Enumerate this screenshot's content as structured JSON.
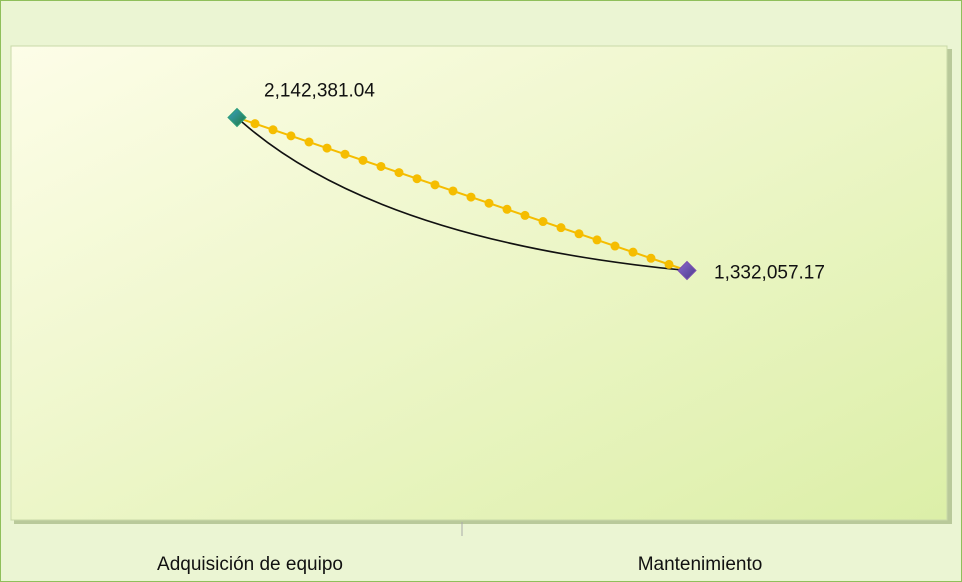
{
  "chart_data": {
    "type": "line",
    "categories": [
      "Adquisición de equipo",
      "Mantenimiento"
    ],
    "values": [
      2142381.04,
      1332057.17
    ],
    "value_labels": [
      "2,142,381.04",
      "1,332,057.17"
    ],
    "color": "#f5bd00",
    "marker_colors": [
      "#2e9e7a",
      "#7a4fb0"
    ],
    "ylim": [
      0,
      2500000
    ]
  }
}
